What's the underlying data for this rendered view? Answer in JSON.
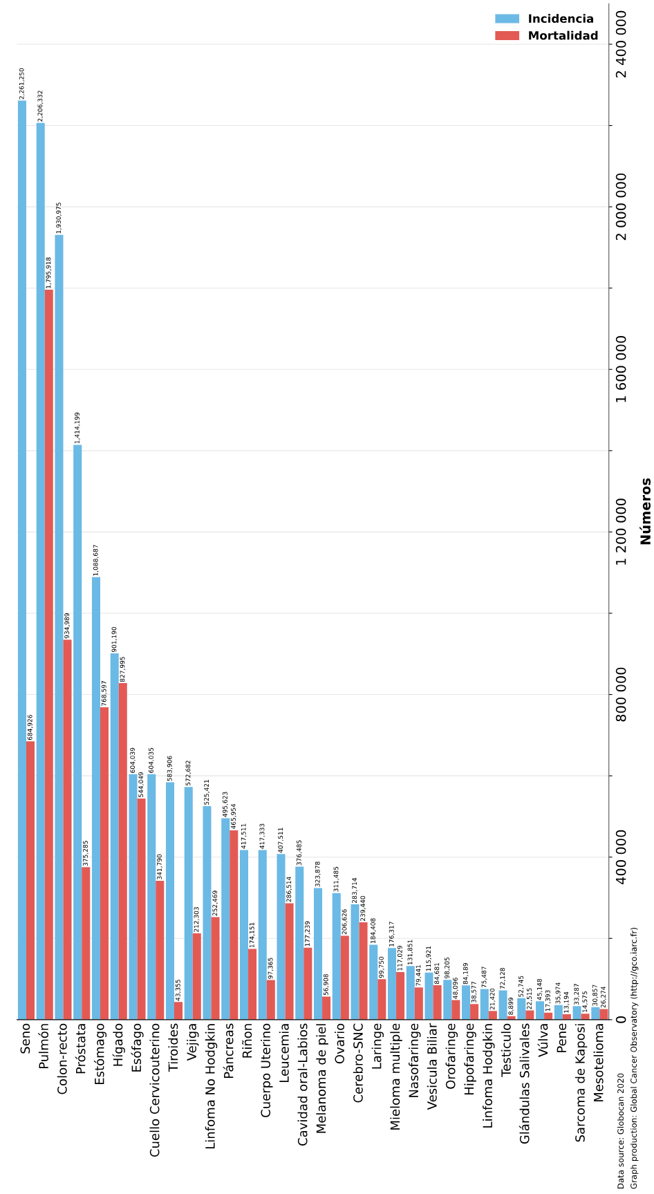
{
  "chart_data": {
    "type": "bar",
    "ylabel": "Números",
    "categories": [
      "Seno",
      "Pulmón",
      "Colon-recto",
      "Próstata",
      "Estómago",
      "Hígado",
      "Esófago",
      "Cuello Cervicouterino",
      "Tiroides",
      "Vejiga",
      "Linfoma No Hodgkin",
      "Páncreas",
      "Riñon",
      "Cuerpo Uterino",
      "Leucemia",
      "Cavidad oral-Labios",
      "Melanoma de piel",
      "Ovario",
      "Cerebro-SNC",
      "Laringe",
      "Mieloma multiple",
      "Nasofaringe",
      "Vesicula Biliar",
      "Orofaringe",
      "Hipofaringe",
      "Linfoma Hodgkin",
      "Testiculo",
      "Glándulas Salivales",
      "Vúlva",
      "Pene",
      "Sarcoma de Kaposi",
      "Mesotelioma"
    ],
    "series": [
      {
        "name": "Incidencia",
        "color": "#6bb9e5",
        "values": [
          2261250,
          2206332,
          1930975,
          1414199,
          1088687,
          901190,
          604039,
          604035,
          583906,
          572682,
          525421,
          495623,
          417511,
          417333,
          407511,
          376485,
          323878,
          311485,
          283714,
          184408,
          176317,
          131851,
          115921,
          98205,
          84189,
          75487,
          72128,
          52745,
          45148,
          35974,
          33287,
          30857
        ],
        "value_labels": [
          "2,261,250",
          "2,206,332",
          "1,930,975",
          "1,414,199",
          "1,088,687",
          "901,190",
          "604,039",
          "604,035",
          "583,906",
          "572,682",
          "525,421",
          "495,623",
          "417,511",
          "417,333",
          "407,511",
          "376,485",
          "323,878",
          "311,485",
          "283,714",
          "184,408",
          "176,317",
          "131,851",
          "115,921",
          "98,205",
          "84,189",
          "75,487",
          "72,128",
          "52,745",
          "45,148",
          "35,974",
          "33,287",
          "30,857"
        ]
      },
      {
        "name": "Mortalidad",
        "color": "#e35a55",
        "values": [
          684926,
          1795918,
          934989,
          375285,
          768597,
          827995,
          544049,
          341790,
          43355,
          212303,
          252469,
          465954,
          174151,
          97365,
          286514,
          177239,
          56908,
          206626,
          239440,
          99750,
          117029,
          79441,
          84681,
          48096,
          38577,
          21420,
          8899,
          22515,
          17393,
          13194,
          14575,
          26274
        ],
        "value_labels": [
          "684,926",
          "1,795,918",
          "934,989",
          "375,285",
          "768,597",
          "827,995",
          "544,049",
          "341,790",
          "43,355",
          "212,303",
          "252,469",
          "465,954",
          "174,151",
          "97,365",
          "286,514",
          "177,239",
          "56,908",
          "206,626",
          "239,440",
          "99,750",
          "117,029",
          "79,441",
          "84,681",
          "48,096",
          "38,577",
          "21,420",
          "8,899",
          "22,515",
          "17,393",
          "13,194",
          "14,575",
          "26,274"
        ]
      }
    ],
    "ylim": [
      0,
      2500000
    ],
    "yticks": [
      0,
      {
        "value": 200000,
        "label": null
      },
      {
        "value": 400000,
        "label": "400 000"
      },
      {
        "value": 600000,
        "label": null
      },
      {
        "value": 800000,
        "label": "800 000"
      },
      {
        "value": 1000000,
        "label": null
      },
      {
        "value": 1200000,
        "label": "1 200 000"
      },
      {
        "value": 1400000,
        "label": null
      },
      {
        "value": 1600000,
        "label": "1 600 000"
      },
      {
        "value": 1800000,
        "label": null
      },
      {
        "value": 2000000,
        "label": "2 000 000"
      },
      {
        "value": 2200000,
        "label": null
      },
      {
        "value": 2400000,
        "label": "2 400 000"
      }
    ],
    "grid": "y",
    "legend": "top right",
    "annotations": [
      "Data source: Globocan 2020",
      "Graph production: Global Cancer Observatory (http://gco.iarc.fr)"
    ]
  }
}
